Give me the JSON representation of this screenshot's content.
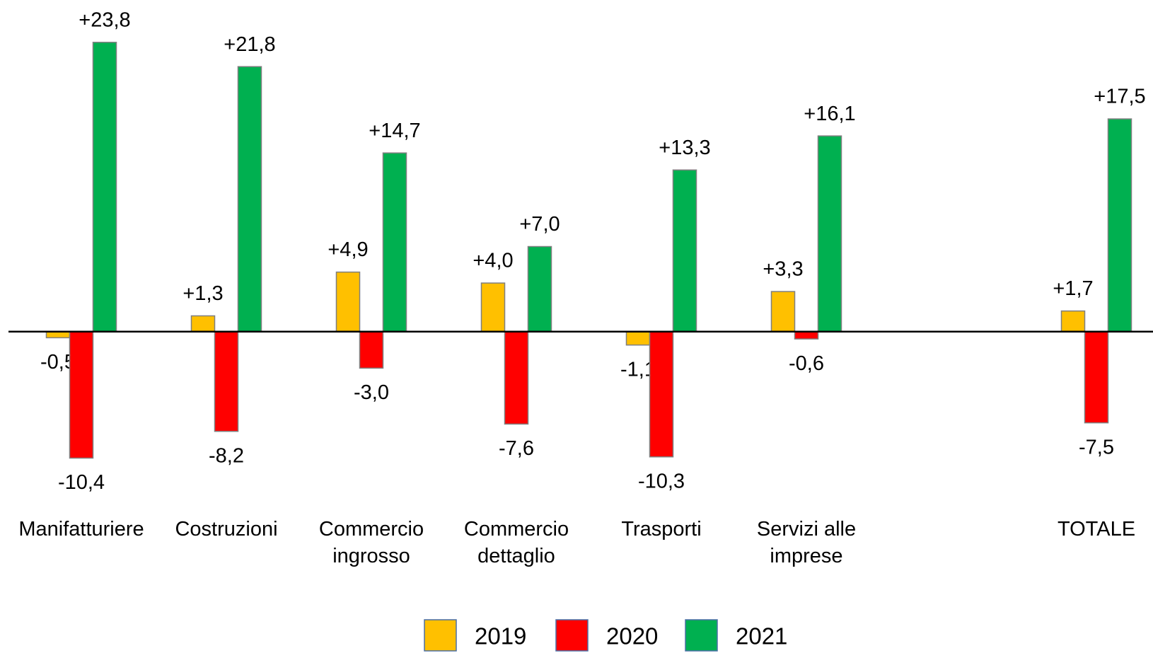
{
  "chart_data": {
    "type": "bar",
    "categories": [
      "Manifatturiere",
      "Costruzioni",
      "Commercio ingrosso",
      "Commercio dettaglio",
      "Trasporti",
      "Servizi alle imprese",
      null,
      "TOTALE"
    ],
    "series": [
      {
        "name": "2019",
        "color": "#FFC000",
        "values": [
          -0.5,
          1.3,
          4.9,
          4.0,
          -1.1,
          3.3,
          null,
          1.7
        ],
        "value_labels": [
          "-0,5",
          "+1,3",
          "+4,9",
          "+4,0",
          "-1,1",
          "+3,3",
          null,
          "+1,7"
        ]
      },
      {
        "name": "2020",
        "color": "#FF0000",
        "values": [
          -10.4,
          -8.2,
          -3.0,
          -7.6,
          -10.3,
          -0.6,
          null,
          -7.5
        ],
        "value_labels": [
          "-10,4",
          "-8,2",
          "-3,0",
          "-7,6",
          "-10,3",
          "-0,6",
          null,
          "-7,5"
        ]
      },
      {
        "name": "2021",
        "color": "#00B050",
        "values": [
          23.8,
          21.8,
          14.7,
          7.0,
          13.3,
          16.1,
          null,
          17.5
        ],
        "value_labels": [
          "+23,8",
          "+21,8",
          "+14,7",
          "+7,0",
          "+13,3",
          "+16,1",
          null,
          "+17,5"
        ]
      }
    ],
    "ylim": [
      -12,
      26
    ],
    "legend": "bottom"
  }
}
